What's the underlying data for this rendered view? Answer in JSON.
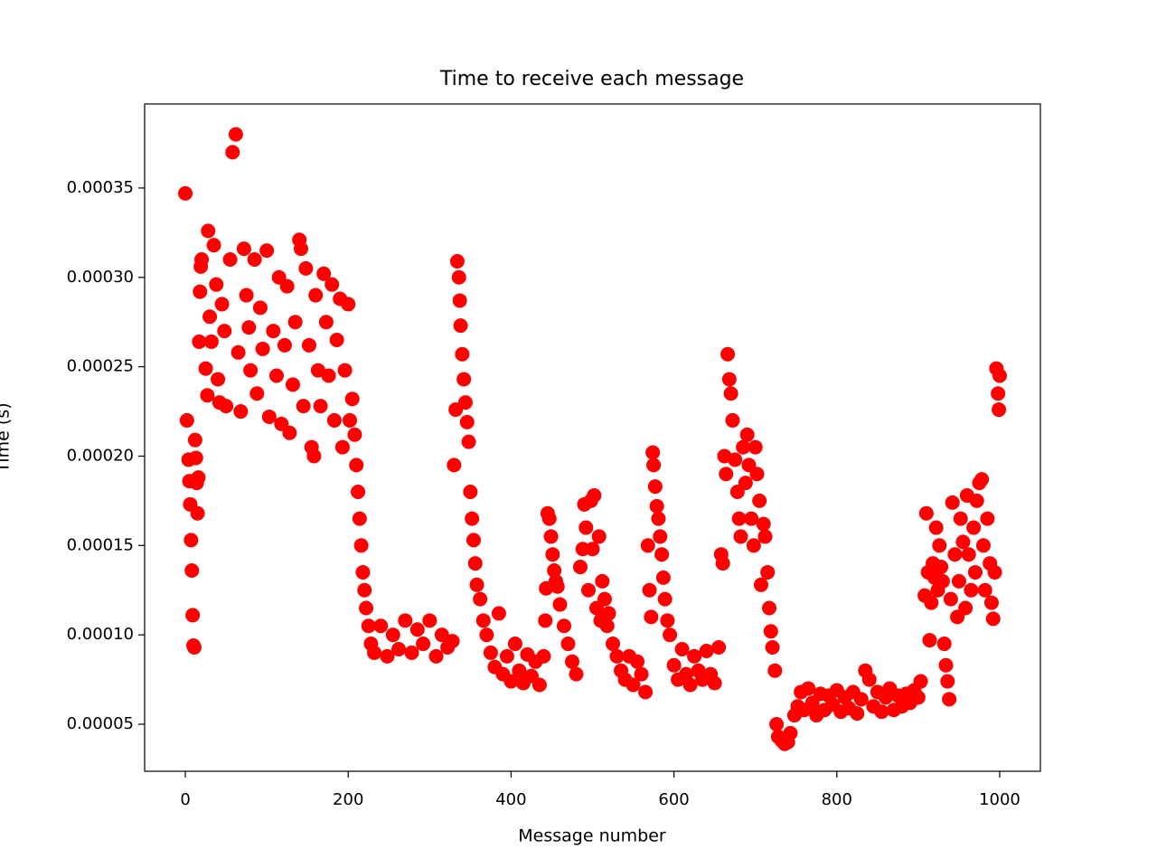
{
  "chart_data": {
    "type": "scatter",
    "title": "Time to receive each message",
    "x_label": "Message number",
    "y_label": "Time (s)",
    "color": "#ff0000",
    "xlim": [
      -50,
      1050
    ],
    "xticks": [
      0,
      200,
      400,
      600,
      800,
      1000
    ],
    "ylim": [
      2.37e-05,
      0.000397
    ],
    "yticks": [
      5e-05,
      {
        "value": 0.0001,
        "label": "0.00010"
      },
      0.00015,
      {
        "value": 0.0002,
        "label": "0.00020"
      },
      0.00025,
      {
        "value": 0.0003,
        "label": "0.00030"
      },
      0.00035
    ],
    "x": [
      0,
      2,
      4,
      5,
      6,
      7,
      8,
      9,
      10,
      11,
      12,
      13,
      14,
      15,
      16,
      17,
      18,
      19,
      20,
      25,
      27,
      28,
      30,
      32,
      35,
      38,
      40,
      42,
      45,
      48,
      50,
      55,
      58,
      62,
      65,
      68,
      72,
      75,
      78,
      80,
      85,
      88,
      92,
      95,
      100,
      103,
      108,
      112,
      115,
      118,
      122,
      125,
      128,
      132,
      135,
      140,
      142,
      145,
      148,
      152,
      155,
      158,
      160,
      163,
      166,
      170,
      173,
      176,
      180,
      183,
      186,
      190,
      193,
      196,
      200,
      202,
      205,
      208,
      210,
      212,
      214,
      216,
      218,
      220,
      222,
      225,
      228,
      232,
      240,
      248,
      255,
      262,
      270,
      278,
      285,
      292,
      300,
      308,
      315,
      322,
      328,
      330,
      332,
      334,
      336,
      337,
      338,
      340,
      342,
      344,
      346,
      348,
      350,
      352,
      354,
      356,
      358,
      362,
      366,
      370,
      375,
      380,
      385,
      390,
      395,
      400,
      405,
      410,
      415,
      420,
      425,
      430,
      435,
      440,
      442,
      443,
      445,
      447,
      449,
      451,
      453,
      455,
      457,
      460,
      465,
      470,
      475,
      480,
      485,
      488,
      490,
      492,
      495,
      498,
      500,
      502,
      505,
      508,
      510,
      512,
      515,
      518,
      520,
      525,
      530,
      535,
      540,
      545,
      550,
      555,
      560,
      565,
      568,
      570,
      572,
      574,
      575,
      577,
      579,
      581,
      583,
      585,
      587,
      589,
      592,
      595,
      600,
      605,
      610,
      615,
      620,
      625,
      630,
      635,
      640,
      645,
      650,
      655,
      658,
      660,
      662,
      664,
      666,
      668,
      670,
      672,
      675,
      678,
      680,
      682,
      685,
      688,
      690,
      692,
      695,
      698,
      700,
      702,
      705,
      707,
      710,
      712,
      715,
      717,
      719,
      721,
      724,
      726,
      728,
      732,
      736,
      740,
      743,
      748,
      752,
      756,
      760,
      765,
      770,
      775,
      780,
      785,
      790,
      795,
      800,
      805,
      810,
      815,
      820,
      825,
      830,
      835,
      840,
      845,
      850,
      855,
      860,
      865,
      870,
      875,
      880,
      885,
      890,
      895,
      900,
      903,
      908,
      910,
      912,
      914,
      916,
      918,
      920,
      922,
      924,
      926,
      928,
      930,
      932,
      934,
      936,
      938,
      940,
      942,
      945,
      948,
      950,
      952,
      955,
      958,
      960,
      962,
      965,
      968,
      970,
      972,
      975,
      978,
      980,
      982,
      985,
      988,
      990,
      992,
      994,
      996,
      998,
      999,
      1000
    ],
    "y": [
      0.000347,
      0.00022,
      0.000198,
      0.000186,
      0.000173,
      0.000153,
      0.000136,
      0.000111,
      9.4e-05,
      9.3e-05,
      0.000209,
      0.000199,
      0.000185,
      0.000168,
      0.000188,
      0.000264,
      0.000292,
      0.000306,
      0.00031,
      0.000249,
      0.000234,
      0.000326,
      0.000278,
      0.000264,
      0.000318,
      0.000296,
      0.000243,
      0.00023,
      0.000285,
      0.00027,
      0.000228,
      0.00031,
      0.00037,
      0.00038,
      0.000258,
      0.000225,
      0.000316,
      0.00029,
      0.000272,
      0.000248,
      0.00031,
      0.000235,
      0.000283,
      0.00026,
      0.000315,
      0.000222,
      0.00027,
      0.000245,
      0.0003,
      0.000218,
      0.000262,
      0.000295,
      0.000213,
      0.00024,
      0.000275,
      0.000321,
      0.000316,
      0.000228,
      0.000305,
      0.000262,
      0.000205,
      0.0002,
      0.00029,
      0.000248,
      0.000228,
      0.000302,
      0.000275,
      0.000245,
      0.000296,
      0.00022,
      0.000265,
      0.000288,
      0.000205,
      0.000248,
      0.000285,
      0.00022,
      0.000232,
      0.000212,
      0.000195,
      0.00018,
      0.000165,
      0.00015,
      0.000135,
      0.000125,
      0.000115,
      0.000105,
      9.5e-05,
      9e-05,
      0.000105,
      8.8e-05,
      0.0001,
      9.2e-05,
      0.000108,
      9e-05,
      0.000103,
      9.5e-05,
      0.000108,
      8.8e-05,
      0.0001,
      9.3e-05,
      9.65e-05,
      0.000195,
      0.000226,
      0.000309,
      0.0003,
      0.000287,
      0.000273,
      0.000257,
      0.000243,
      0.00023,
      0.000219,
      0.000208,
      0.00018,
      0.000165,
      0.000153,
      0.00014,
      0.000128,
      0.00012,
      0.000108,
      0.0001,
      9e-05,
      8.2e-05,
      0.000112,
      7.8e-05,
      8.8e-05,
      7.4e-05,
      9.5e-05,
      8e-05,
      7.3e-05,
      8.9e-05,
      7.7e-05,
      8.5e-05,
      7.2e-05,
      8.8e-05,
      0.000108,
      0.000126,
      0.000168,
      0.000165,
      0.000155,
      0.000145,
      0.000136,
      0.00013,
      0.000127,
      0.000117,
      0.000105,
      9.5e-05,
      8.5e-05,
      7.8e-05,
      0.000138,
      0.000148,
      0.000173,
      0.00016,
      0.000125,
      0.000175,
      0.000148,
      0.000178,
      0.000115,
      0.000155,
      0.000108,
      0.00013,
      0.00012,
      0.000105,
      0.000112,
      9.5e-05,
      8.8e-05,
      8e-05,
      7.5e-05,
      8.8e-05,
      7.2e-05,
      8.5e-05,
      7.8e-05,
      6.8e-05,
      0.00015,
      0.000125,
      0.00011,
      0.000202,
      0.000195,
      0.000183,
      0.000172,
      0.000165,
      0.000155,
      0.000145,
      0.000132,
      0.00012,
      0.000108,
      0.0001,
      8.3e-05,
      7.5e-05,
      9.2e-05,
      7.8e-05,
      7.2e-05,
      8.8e-05,
      8e-05,
      7.5e-05,
      9.1e-05,
      7.8e-05,
      7.3e-05,
      9.3e-05,
      0.000145,
      0.00014,
      0.0002,
      0.00019,
      0.000257,
      0.000243,
      0.000235,
      0.00022,
      0.000198,
      0.00018,
      0.000165,
      0.000155,
      0.000205,
      0.000185,
      0.000212,
      0.000195,
      0.000165,
      0.00015,
      0.000205,
      0.00019,
      0.000175,
      0.000128,
      0.000162,
      0.000155,
      0.000135,
      0.000115,
      0.000102,
      9.3e-05,
      8e-05,
      5e-05,
      4.3e-05,
      4.1e-05,
      3.9e-05,
      4e-05,
      4.5e-05,
      5.5e-05,
      6e-05,
      6.8e-05,
      5.8e-05,
      7e-05,
      6.2e-05,
      5.5e-05,
      6.7e-05,
      5.8e-05,
      6.6e-05,
      6.1e-05,
      6.9e-05,
      5.7e-05,
      6.5e-05,
      5.9e-05,
      6.8e-05,
      5.6e-05,
      6.4e-05,
      8e-05,
      7.5e-05,
      6e-05,
      6.8e-05,
      5.7e-05,
      6.5e-05,
      7e-05,
      5.8e-05,
      6.6e-05,
      6e-05,
      6.7e-05,
      6.2e-05,
      6.9e-05,
      6.5e-05,
      7.4e-05,
      0.000122,
      0.000168,
      0.000135,
      9.7e-05,
      0.000118,
      0.00014,
      0.000132,
      0.00016,
      0.000125,
      0.00015,
      0.000138,
      0.00013,
      9.5e-05,
      8.3e-05,
      7.4e-05,
      6.4e-05,
      0.00012,
      0.000174,
      0.000145,
      0.00011,
      0.00013,
      0.000165,
      0.000152,
      0.000115,
      0.000178,
      0.000145,
      0.000125,
      0.00016,
      0.000135,
      0.000175,
      0.000185,
      0.000187,
      0.00015,
      0.000125,
      0.000165,
      0.00014,
      0.000118,
      0.000109,
      0.000135,
      0.000249,
      0.000235,
      0.000226,
      0.000245
    ]
  }
}
